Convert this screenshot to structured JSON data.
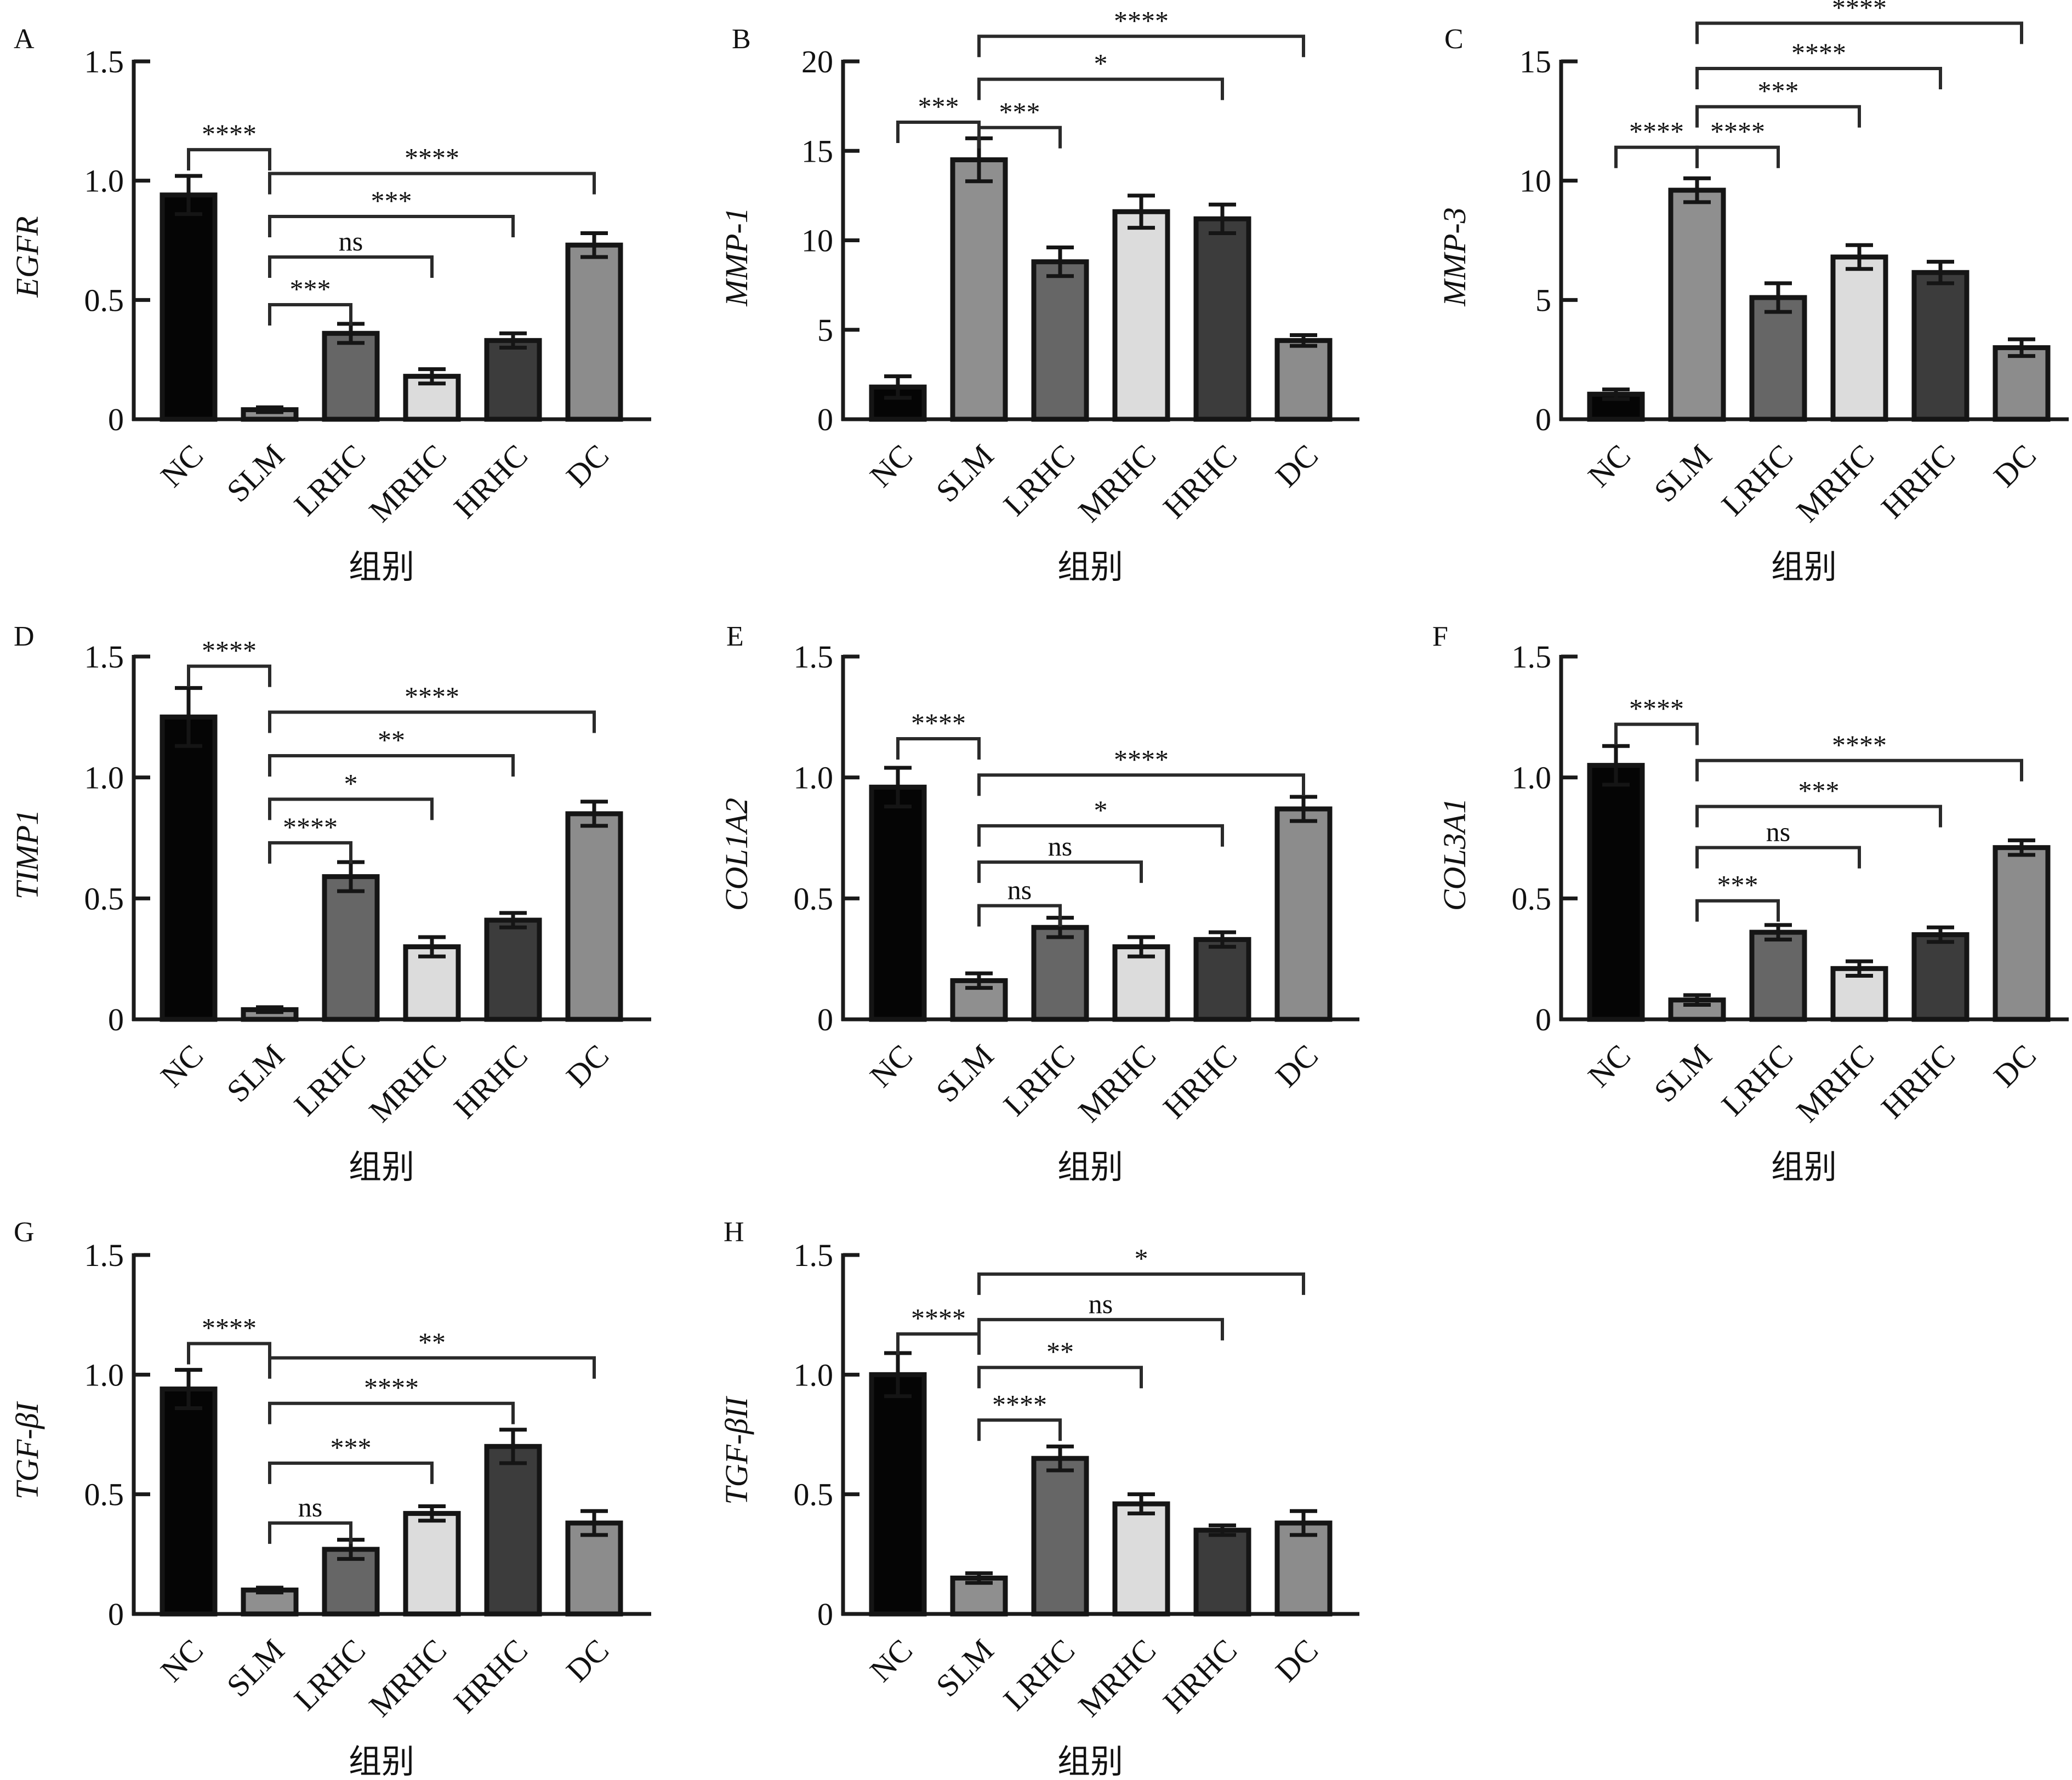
{
  "figure": {
    "colors": {
      "NC": "#050505",
      "SLM": "#8f8f8f",
      "LRHC": "#666666",
      "MRHC": "#dcdcdc",
      "HRHC": "#3c3c3c",
      "DC": "#8c8c8c"
    }
  },
  "chart_data": [
    {
      "panel": "A",
      "type": "bar",
      "ylabel": "EGFR",
      "xlabel": "组别",
      "categories": [
        "NC",
        "SLM",
        "LRHC",
        "MRHC",
        "HRHC",
        "DC"
      ],
      "values": [
        0.94,
        0.04,
        0.36,
        0.18,
        0.33,
        0.73
      ],
      "errors": [
        0.08,
        0.01,
        0.04,
        0.03,
        0.03,
        0.05
      ],
      "ylim": [
        0,
        1.5
      ],
      "yticks": [
        "0",
        "0.5",
        "1.0",
        "1.5"
      ],
      "ytick_values": [
        0,
        0.5,
        1.0,
        1.5
      ],
      "comparisons": [
        {
          "from": "NC",
          "to": "SLM",
          "label": "****",
          "level": 1.13
        },
        {
          "from": "SLM",
          "to": "DC",
          "label": "****",
          "level": 1.03
        },
        {
          "from": "SLM",
          "to": "HRHC",
          "label": "***",
          "level": 0.85
        },
        {
          "from": "SLM",
          "to": "MRHC",
          "label": "ns",
          "level": 0.68
        },
        {
          "from": "SLM",
          "to": "LRHC",
          "label": "***",
          "level": 0.48
        }
      ]
    },
    {
      "panel": "B",
      "type": "bar",
      "ylabel": "MMP-1",
      "xlabel": "组别",
      "categories": [
        "NC",
        "SLM",
        "LRHC",
        "MRHC",
        "HRHC",
        "DC"
      ],
      "values": [
        1.8,
        14.5,
        8.8,
        11.6,
        11.2,
        4.4
      ],
      "errors": [
        0.6,
        1.2,
        0.8,
        0.9,
        0.8,
        0.3
      ],
      "ylim": [
        0,
        20
      ],
      "yticks": [
        "0",
        "5",
        "10",
        "15",
        "20"
      ],
      "ytick_values": [
        0,
        5,
        10,
        15,
        20
      ],
      "comparisons": [
        {
          "from": "NC",
          "to": "SLM",
          "label": "***",
          "level": 16.6
        },
        {
          "from": "SLM",
          "to": "LRHC",
          "label": "***",
          "level": 16.3
        },
        {
          "from": "SLM",
          "to": "HRHC",
          "label": "*",
          "level": 19.0
        },
        {
          "from": "SLM",
          "to": "DC",
          "label": "****",
          "level": 21.4
        }
      ]
    },
    {
      "panel": "C",
      "type": "bar",
      "ylabel": "MMP-3",
      "xlabel": "组别",
      "categories": [
        "NC",
        "SLM",
        "LRHC",
        "MRHC",
        "HRHC",
        "DC"
      ],
      "values": [
        1.05,
        9.6,
        5.1,
        6.8,
        6.15,
        3.0
      ],
      "errors": [
        0.2,
        0.5,
        0.6,
        0.5,
        0.45,
        0.35
      ],
      "ylim": [
        0,
        15
      ],
      "yticks": [
        "0",
        "5",
        "10",
        "15"
      ],
      "ytick_values": [
        0,
        5,
        10,
        15
      ],
      "comparisons": [
        {
          "from": "NC",
          "to": "SLM",
          "label": "****",
          "level": 11.4
        },
        {
          "from": "SLM",
          "to": "LRHC",
          "label": "****",
          "level": 11.4
        },
        {
          "from": "SLM",
          "to": "MRHC",
          "label": "***",
          "level": 13.1
        },
        {
          "from": "SLM",
          "to": "HRHC",
          "label": "****",
          "level": 14.7
        },
        {
          "from": "SLM",
          "to": "DC",
          "label": "****",
          "level": 16.6
        }
      ]
    },
    {
      "panel": "D",
      "type": "bar",
      "ylabel": "TIMP1",
      "xlabel": "组别",
      "categories": [
        "NC",
        "SLM",
        "LRHC",
        "MRHC",
        "HRHC",
        "DC"
      ],
      "values": [
        1.25,
        0.04,
        0.59,
        0.3,
        0.41,
        0.85
      ],
      "errors": [
        0.12,
        0.01,
        0.06,
        0.04,
        0.03,
        0.05
      ],
      "ylim": [
        0,
        1.5
      ],
      "yticks": [
        "0",
        "0.5",
        "1.0",
        "1.5"
      ],
      "ytick_values": [
        0,
        0.5,
        1.0,
        1.5
      ],
      "comparisons": [
        {
          "from": "NC",
          "to": "SLM",
          "label": "****",
          "level": 1.46
        },
        {
          "from": "SLM",
          "to": "DC",
          "label": "****",
          "level": 1.27
        },
        {
          "from": "SLM",
          "to": "HRHC",
          "label": "**",
          "level": 1.09
        },
        {
          "from": "SLM",
          "to": "MRHC",
          "label": "*",
          "level": 0.91
        },
        {
          "from": "SLM",
          "to": "LRHC",
          "label": "****",
          "level": 0.73
        }
      ]
    },
    {
      "panel": "E",
      "type": "bar",
      "ylabel": "COL1A2",
      "xlabel": "组别",
      "categories": [
        "NC",
        "SLM",
        "LRHC",
        "MRHC",
        "HRHC",
        "DC"
      ],
      "values": [
        0.96,
        0.16,
        0.38,
        0.3,
        0.33,
        0.87
      ],
      "errors": [
        0.08,
        0.03,
        0.04,
        0.04,
        0.03,
        0.05
      ],
      "ylim": [
        0,
        1.5
      ],
      "yticks": [
        "0",
        "0.5",
        "1.0",
        "1.5"
      ],
      "ytick_values": [
        0,
        0.5,
        1.0,
        1.5
      ],
      "comparisons": [
        {
          "from": "NC",
          "to": "SLM",
          "label": "****",
          "level": 1.16
        },
        {
          "from": "SLM",
          "to": "DC",
          "label": "****",
          "level": 1.01
        },
        {
          "from": "SLM",
          "to": "HRHC",
          "label": "*",
          "level": 0.8
        },
        {
          "from": "SLM",
          "to": "MRHC",
          "label": "ns",
          "level": 0.65
        },
        {
          "from": "SLM",
          "to": "LRHC",
          "label": "ns",
          "level": 0.47
        }
      ]
    },
    {
      "panel": "F",
      "type": "bar",
      "ylabel": "COL3A1",
      "xlabel": "组别",
      "categories": [
        "NC",
        "SLM",
        "LRHC",
        "MRHC",
        "HRHC",
        "DC"
      ],
      "values": [
        1.05,
        0.08,
        0.36,
        0.21,
        0.35,
        0.71
      ],
      "errors": [
        0.08,
        0.02,
        0.03,
        0.03,
        0.03,
        0.03
      ],
      "ylim": [
        0,
        1.5
      ],
      "yticks": [
        "0",
        "0.5",
        "1.0",
        "1.5"
      ],
      "ytick_values": [
        0,
        0.5,
        1.0,
        1.5
      ],
      "comparisons": [
        {
          "from": "NC",
          "to": "SLM",
          "label": "****",
          "level": 1.22
        },
        {
          "from": "SLM",
          "to": "DC",
          "label": "****",
          "level": 1.07
        },
        {
          "from": "SLM",
          "to": "HRHC",
          "label": "***",
          "level": 0.88
        },
        {
          "from": "SLM",
          "to": "MRHC",
          "label": "ns",
          "level": 0.71
        },
        {
          "from": "SLM",
          "to": "LRHC",
          "label": "***",
          "level": 0.49
        }
      ]
    },
    {
      "panel": "G",
      "type": "bar",
      "ylabel": "TGF-βI",
      "xlabel": "组别",
      "categories": [
        "NC",
        "SLM",
        "LRHC",
        "MRHC",
        "HRHC",
        "DC"
      ],
      "values": [
        0.94,
        0.1,
        0.27,
        0.42,
        0.7,
        0.38
      ],
      "errors": [
        0.08,
        0.01,
        0.04,
        0.03,
        0.07,
        0.05
      ],
      "ylim": [
        0,
        1.5
      ],
      "yticks": [
        "0",
        "0.5",
        "1.0",
        "1.5"
      ],
      "ytick_values": [
        0,
        0.5,
        1.0,
        1.5
      ],
      "comparisons": [
        {
          "from": "NC",
          "to": "SLM",
          "label": "****",
          "level": 1.13
        },
        {
          "from": "SLM",
          "to": "DC",
          "label": "**",
          "level": 1.07
        },
        {
          "from": "SLM",
          "to": "HRHC",
          "label": "****",
          "level": 0.88
        },
        {
          "from": "SLM",
          "to": "MRHC",
          "label": "***",
          "level": 0.63
        },
        {
          "from": "SLM",
          "to": "LRHC",
          "label": "ns",
          "level": 0.38
        }
      ]
    },
    {
      "panel": "H",
      "type": "bar",
      "ylabel": "TGF-βII",
      "xlabel": "组别",
      "categories": [
        "NC",
        "SLM",
        "LRHC",
        "MRHC",
        "HRHC",
        "DC"
      ],
      "values": [
        1.0,
        0.15,
        0.65,
        0.46,
        0.35,
        0.38
      ],
      "errors": [
        0.09,
        0.02,
        0.05,
        0.04,
        0.02,
        0.05
      ],
      "ylim": [
        0,
        1.5
      ],
      "yticks": [
        "0",
        "0.5",
        "1.0",
        "1.5"
      ],
      "ytick_values": [
        0,
        0.5,
        1.0,
        1.5
      ],
      "comparisons": [
        {
          "from": "NC",
          "to": "SLM",
          "label": "****",
          "level": 1.17
        },
        {
          "from": "SLM",
          "to": "DC",
          "label": "*",
          "level": 1.42
        },
        {
          "from": "SLM",
          "to": "HRHC",
          "label": "ns",
          "level": 1.23
        },
        {
          "from": "SLM",
          "to": "MRHC",
          "label": "**",
          "level": 1.03
        },
        {
          "from": "SLM",
          "to": "LRHC",
          "label": "****",
          "level": 0.81
        }
      ]
    }
  ]
}
